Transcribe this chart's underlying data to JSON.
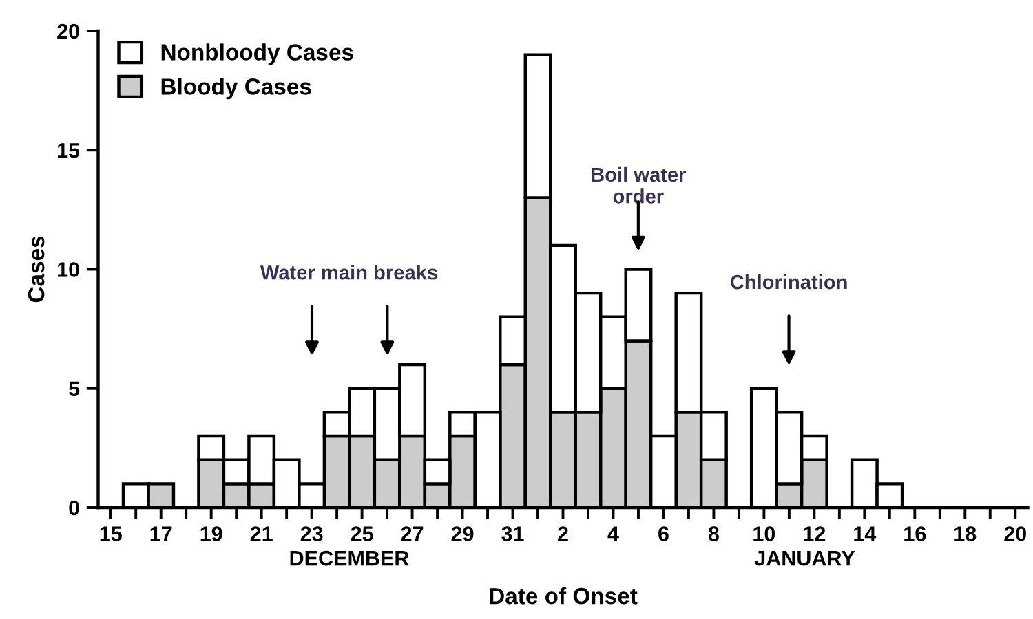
{
  "chart_data": {
    "type": "bar",
    "stacked": true,
    "xlabel": "Date of Onset",
    "ylabel": "Cases",
    "categories": [
      "15",
      null,
      "17",
      null,
      "19",
      null,
      "21",
      null,
      "23",
      null,
      "25",
      null,
      "27",
      null,
      "29",
      null,
      "31",
      null,
      "2",
      null,
      "4",
      null,
      "6",
      null,
      "8",
      null,
      "10",
      null,
      "12",
      null,
      "14",
      null,
      "16",
      null,
      "18",
      null,
      "20"
    ],
    "series": [
      {
        "name": "Bloody Cases",
        "color": "#cccccc",
        "values": [
          0,
          0,
          1,
          0,
          2,
          1,
          1,
          0,
          0,
          3,
          3,
          2,
          3,
          1,
          3,
          0,
          6,
          13,
          4,
          4,
          5,
          7,
          0,
          4,
          2,
          0,
          0,
          1,
          2,
          0,
          0,
          0,
          0,
          0,
          0,
          0,
          0
        ]
      },
      {
        "name": "Nonbloody Cases",
        "color": "#ffffff",
        "values": [
          0,
          1,
          0,
          0,
          1,
          1,
          2,
          2,
          1,
          1,
          2,
          3,
          3,
          1,
          1,
          4,
          2,
          6,
          7,
          5,
          3,
          3,
          3,
          5,
          2,
          0,
          5,
          3,
          1,
          0,
          2,
          1,
          0,
          0,
          0,
          0,
          0
        ]
      }
    ],
    "ylim": [
      0,
      20
    ],
    "yticks": [
      0,
      5,
      10,
      15,
      20
    ],
    "grid": false,
    "legend": "top left",
    "annotations": [
      "Water main breaks",
      "Boil water\norder",
      "Chlorination",
      "DECEMBER",
      "JANUARY"
    ]
  }
}
